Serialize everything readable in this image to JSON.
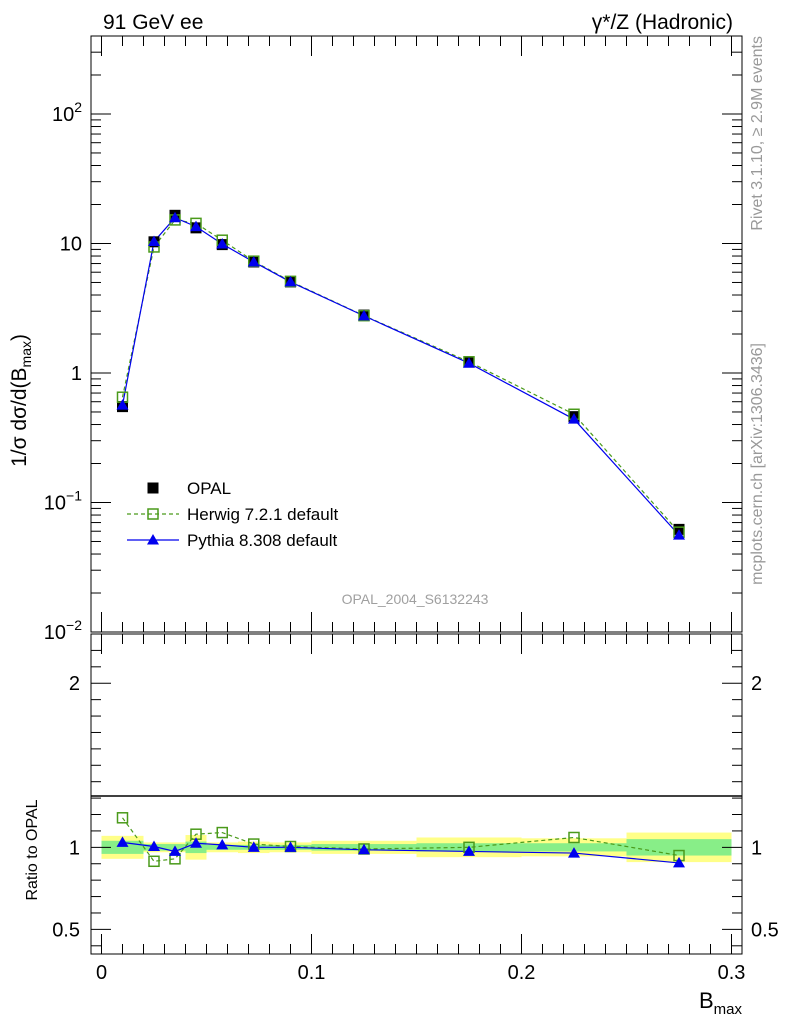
{
  "header": {
    "left_label": "91 GeV ee",
    "right_label": "γ*/Z (Hadronic)"
  },
  "side_labels": {
    "rivet": "Rivet 3.1.10, ≥ 2.9M events",
    "mcplots": "mcplots.cern.ch [arXiv:1306.3436]"
  },
  "watermark": "OPAL_2004_S6132243",
  "chart_data": [
    {
      "type": "scatter",
      "panel": "main",
      "ylabel": "1/σ dσ/d(B_max)",
      "yscale": "log",
      "ylim": [
        0.01,
        400
      ],
      "xlim": [
        -0.005,
        0.305
      ],
      "yticks": [
        {
          "value": 0.01,
          "base": "10",
          "exp": "−2"
        },
        {
          "value": 0.1,
          "base": "10",
          "exp": "−1"
        },
        {
          "value": 1,
          "base": "1",
          "exp": ""
        },
        {
          "value": 10,
          "base": "10",
          "exp": ""
        },
        {
          "value": 100,
          "base": "10",
          "exp": "2"
        }
      ],
      "legend_position": "lower-left",
      "series": [
        {
          "name": "OPAL",
          "color": "#000000",
          "marker": "filled-square",
          "x": [
            0.01,
            0.025,
            0.035,
            0.045,
            0.0575,
            0.0725,
            0.09,
            0.125,
            0.175,
            0.225,
            0.275
          ],
          "y": [
            0.55,
            10.3,
            16.5,
            13.2,
            9.8,
            7.2,
            5.05,
            2.8,
            1.22,
            0.46,
            0.062
          ]
        },
        {
          "name": "Herwig 7.2.1 default",
          "color": "#4a9a1a",
          "marker": "open-square",
          "line": "dashed",
          "x": [
            0.01,
            0.025,
            0.035,
            0.045,
            0.0575,
            0.0725,
            0.09,
            0.125,
            0.175,
            0.225,
            0.275
          ],
          "y": [
            0.65,
            9.4,
            15.2,
            14.3,
            10.6,
            7.3,
            5.1,
            2.77,
            1.22,
            0.48,
            0.059
          ]
        },
        {
          "name": "Pythia 8.308 default",
          "color": "#0000ee",
          "marker": "filled-triangle",
          "line": "solid",
          "x": [
            0.01,
            0.025,
            0.035,
            0.045,
            0.0575,
            0.0725,
            0.09,
            0.125,
            0.175,
            0.225,
            0.275
          ],
          "y": [
            0.565,
            10.35,
            15.8,
            13.5,
            9.9,
            7.2,
            5.05,
            2.76,
            1.19,
            0.44,
            0.056
          ]
        }
      ]
    },
    {
      "type": "scatter",
      "panel": "ratio",
      "ylabel": "Ratio to OPAL",
      "xlabel": "B_max",
      "ylim": [
        0.35,
        2.3
      ],
      "xlim": [
        -0.005,
        0.305
      ],
      "yticks": [
        0.5,
        1,
        2
      ],
      "xticks": [
        0,
        0.1,
        0.2,
        0.3
      ],
      "bands": [
        {
          "x0": 0.0,
          "x1": 0.02,
          "stat": [
            0.96,
            1.04
          ],
          "total": [
            0.93,
            1.07
          ]
        },
        {
          "x0": 0.02,
          "x1": 0.03,
          "stat": [
            0.98,
            1.02
          ],
          "total": [
            0.97,
            1.03
          ]
        },
        {
          "x0": 0.03,
          "x1": 0.04,
          "stat": [
            0.98,
            1.02
          ],
          "total": [
            0.97,
            1.03
          ]
        },
        {
          "x0": 0.04,
          "x1": 0.05,
          "stat": [
            0.965,
            1.035
          ],
          "total": [
            0.925,
            1.075
          ]
        },
        {
          "x0": 0.05,
          "x1": 0.065,
          "stat": [
            0.985,
            1.015
          ],
          "total": [
            0.97,
            1.03
          ]
        },
        {
          "x0": 0.065,
          "x1": 0.08,
          "stat": [
            0.985,
            1.015
          ],
          "total": [
            0.965,
            1.035
          ]
        },
        {
          "x0": 0.08,
          "x1": 0.1,
          "stat": [
            0.985,
            1.015
          ],
          "total": [
            0.97,
            1.03
          ]
        },
        {
          "x0": 0.1,
          "x1": 0.15,
          "stat": [
            0.98,
            1.02
          ],
          "total": [
            0.96,
            1.04
          ]
        },
        {
          "x0": 0.15,
          "x1": 0.2,
          "stat": [
            0.975,
            1.025
          ],
          "total": [
            0.94,
            1.06
          ]
        },
        {
          "x0": 0.2,
          "x1": 0.25,
          "stat": [
            0.975,
            1.025
          ],
          "total": [
            0.945,
            1.055
          ]
        },
        {
          "x0": 0.25,
          "x1": 0.3,
          "stat": [
            0.95,
            1.05
          ],
          "total": [
            0.91,
            1.09
          ]
        }
      ],
      "series": [
        {
          "name": "Herwig 7.2.1 default",
          "color": "#4a9a1a",
          "marker": "open-square",
          "line": "dashed",
          "x": [
            0.01,
            0.025,
            0.035,
            0.045,
            0.0575,
            0.0725,
            0.09,
            0.125,
            0.175,
            0.225,
            0.275
          ],
          "y": [
            1.18,
            0.915,
            0.93,
            1.08,
            1.09,
            1.02,
            1.005,
            0.99,
            1.0,
            1.06,
            0.95
          ]
        },
        {
          "name": "Pythia 8.308 default",
          "color": "#0000ee",
          "marker": "filled-triangle",
          "line": "solid",
          "x": [
            0.01,
            0.025,
            0.035,
            0.045,
            0.0575,
            0.0725,
            0.09,
            0.125,
            0.175,
            0.225,
            0.275
          ],
          "y": [
            1.03,
            1.005,
            0.975,
            1.025,
            1.015,
            1.0,
            1.0,
            0.985,
            0.975,
            0.965,
            0.905
          ]
        }
      ]
    }
  ]
}
